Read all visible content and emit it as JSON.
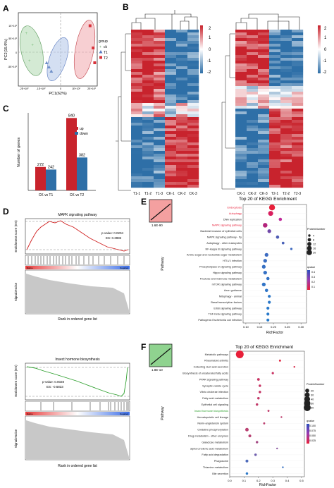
{
  "panels": {
    "A": "A",
    "B": "B",
    "C": "C",
    "D": "D",
    "E": "E",
    "F": "F"
  },
  "panel_a": {
    "xlabel": "PC1(62%)",
    "ylabel": "PC2(15.9%)",
    "legend_title": "group",
    "legend": [
      "ck",
      "T1",
      "T2"
    ],
    "yticks": [
      "1E+10²",
      "5E+10²",
      "0",
      "-5E+10²"
    ],
    "xticks": [
      "-2E+10²",
      "-1E+10²",
      "0",
      "1E+10²",
      "2E+10²"
    ]
  },
  "panel_b": {
    "labels_left": [
      "T1-1",
      "T1-2",
      "T1-3",
      "CK-1",
      "CK-2",
      "CK-3"
    ],
    "labels_right": [
      "CK-1",
      "CK-2",
      "CK-3",
      "T2-1",
      "T2-2",
      "T2-3"
    ],
    "scale": [
      "2",
      "1",
      "0",
      "-1",
      "-2"
    ]
  },
  "panel_c": {
    "ylabel": "Number of genes",
    "legend": [
      "up",
      "down"
    ],
    "colors": {
      "up": "#c8232c",
      "down": "#2e6fa7"
    }
  },
  "panel_d1": {
    "title": "MAPK signaling pathway",
    "pvalue": "p-value: 0.0204",
    "es": "ES: 0.3982",
    "ylabel_top": "Enrichment score (ES)",
    "ylabel_bottom": "Signal2Noise",
    "xlabel": "Rank in ordered gene list",
    "tag_left": "Native",
    "tag_right": "Negative"
  },
  "panel_d2": {
    "title": "Insect hormone biosynthesis",
    "pvalue": "p-value: 0.0028",
    "es": "ES: -0.6833",
    "ylabel_top": "Enrichment score (ES)",
    "ylabel_bottom": "Signal2Noise",
    "xlabel": "Rank in ordered gene list",
    "tag_left": "Native",
    "tag_right": "Negative"
  },
  "panel_e": {
    "title": "Top 20 of KEGG Enrichment",
    "xlabel": "RichFactor",
    "ylabel": "Pathway",
    "inset_label": "1.6E-90",
    "size_legend_title": "ProteinNumber",
    "color_legend_title": "qvalue"
  },
  "panel_f": {
    "title": "Top 20 of KEGG Enrichment",
    "xlabel": "RichFactor",
    "ylabel": "Pathway",
    "inset_label": "1.8E-10",
    "size_legend_title": "ProteinNumber",
    "color_legend_title": "qvalue"
  },
  "chart_data": [
    {
      "type": "scatter",
      "id": "pca",
      "xlabel": "PC1(62%)",
      "ylabel": "PC2(15.9%)",
      "series": [
        {
          "name": "ck",
          "color": "#7fbf7f",
          "x": [
            -2.2,
            -1.8,
            -2.0
          ],
          "y": [
            0.9,
            0.35,
            -0.4
          ]
        },
        {
          "name": "T1",
          "color": "#6f8fc8",
          "x": [
            -0.9,
            -0.6,
            -0.75
          ],
          "y": [
            -0.5,
            -0.9,
            -0.7
          ]
        },
        {
          "name": "T2",
          "color": "#d8323a",
          "x": [
            1.9,
            2.1,
            2.2
          ],
          "y": [
            1.25,
            0.2,
            -0.5
          ]
        }
      ]
    },
    {
      "type": "bar",
      "id": "deg_counts",
      "ylabel": "Number of genes",
      "categories": [
        "CK vs T1",
        "CK vs T2"
      ],
      "series": [
        {
          "name": "up",
          "values": [
            272,
            840
          ]
        },
        {
          "name": "down",
          "values": [
            242,
            382
          ]
        }
      ]
    },
    {
      "type": "scatter",
      "id": "kegg_e",
      "title": "Top 20 of KEGG Enrichment",
      "xlabel": "RichFactor",
      "ylabel": "Pathway",
      "xticks": [
        "0.10",
        "0.15",
        "0.20",
        "0.25",
        "0.30"
      ],
      "xlim": [
        0.09,
        0.32
      ],
      "size_legend": [
        "4",
        "8",
        "12",
        "16",
        "20"
      ],
      "color_legend": [
        "0.4",
        "0.3",
        "0.2",
        "0.1"
      ],
      "pathways": [
        {
          "name": "Endocytosis",
          "rich": 0.195,
          "size": 20,
          "color": "#e8203a",
          "highlight": true
        },
        {
          "name": "Autophagy",
          "rich": 0.19,
          "size": 14,
          "color": "#d81e5e",
          "highlight": true
        },
        {
          "name": "DNA replication",
          "rich": 0.225,
          "size": 6,
          "color": "#c02a9a",
          "highlight": false
        },
        {
          "name": "MAPK signaling pathway",
          "rich": 0.17,
          "size": 12,
          "color": "#b3247c",
          "highlight": true
        },
        {
          "name": "Bacterial invasion of epithelial cells",
          "rich": 0.185,
          "size": 8,
          "color": "#7048a8",
          "highlight": false
        },
        {
          "name": "MAPK signaling pathway - fly",
          "rich": 0.215,
          "size": 6,
          "color": "#4e5cb4",
          "highlight": false
        },
        {
          "name": "Autophagy - other eukaryotes",
          "rich": 0.235,
          "size": 4,
          "color": "#4a62b8",
          "highlight": false
        },
        {
          "name": "NF-kappa B signaling pathway",
          "rich": 0.265,
          "size": 3,
          "color": "#3f6ac0",
          "highlight": false
        },
        {
          "name": "Amino sugar and nucleotide sugar metabolism",
          "rich": 0.175,
          "size": 8,
          "color": "#3d6cc1",
          "highlight": false
        },
        {
          "name": "HTLV-I infection",
          "rich": 0.17,
          "size": 8,
          "color": "#3a6ec2",
          "highlight": false
        },
        {
          "name": "Phospholipase D signaling pathway",
          "rich": 0.165,
          "size": 8,
          "color": "#3770c3",
          "highlight": false
        },
        {
          "name": "Hippo signaling pathway",
          "rich": 0.17,
          "size": 8,
          "color": "#3571c4",
          "highlight": false
        },
        {
          "name": "Fructose and mannose metabolism",
          "rich": 0.18,
          "size": 6,
          "color": "#3372c5",
          "highlight": false
        },
        {
          "name": "mTOR signaling pathway",
          "rich": 0.165,
          "size": 8,
          "color": "#3174c6",
          "highlight": false
        },
        {
          "name": "Axon guidance",
          "rich": 0.175,
          "size": 6,
          "color": "#2f75c7",
          "highlight": false
        },
        {
          "name": "Mitophagy - animal",
          "rich": 0.185,
          "size": 5,
          "color": "#2d77c8",
          "highlight": false
        },
        {
          "name": "Basal transcription factors",
          "rich": 0.185,
          "size": 5,
          "color": "#2b78c9",
          "highlight": false
        },
        {
          "name": "ErbB signaling pathway",
          "rich": 0.18,
          "size": 5,
          "color": "#2a79ca",
          "highlight": false
        },
        {
          "name": "TGF-beta signaling pathway",
          "rich": 0.18,
          "size": 5,
          "color": "#297aca",
          "highlight": false
        },
        {
          "name": "Pathogenic Escherichia coli infection",
          "rich": 0.18,
          "size": 5,
          "color": "#287bcb",
          "highlight": false
        }
      ]
    },
    {
      "type": "scatter",
      "id": "kegg_f",
      "title": "Top 20 of KEGG Enrichment",
      "xlabel": "RichFactor",
      "ylabel": "Pathway",
      "xticks": [
        "0.0",
        "0.1",
        "0.2",
        "0.3",
        "0.4",
        "0.5"
      ],
      "xlim": [
        0.0,
        0.52
      ],
      "size_legend": [
        "20",
        "30",
        "40",
        "50",
        "60"
      ],
      "color_legend": [
        "0.100",
        "0.075",
        "0.050",
        "0.025"
      ],
      "pathways": [
        {
          "name": "Metabolic pathways",
          "rich": 0.07,
          "size": 60,
          "color": "#e8203a",
          "highlight": false
        },
        {
          "name": "Rheumatoid arthritis",
          "rich": 0.35,
          "size": 4,
          "color": "#e0243e",
          "highlight": false
        },
        {
          "name": "Collecting duct acid secretion",
          "rich": 0.45,
          "size": 3,
          "color": "#d82848",
          "highlight": false
        },
        {
          "name": "Biosynthesis of unsaturated fatty acids",
          "rich": 0.3,
          "size": 5,
          "color": "#c93060",
          "highlight": false
        },
        {
          "name": "PPAR signaling pathway",
          "rich": 0.2,
          "size": 7,
          "color": "#c83262",
          "highlight": false
        },
        {
          "name": "Synaptic vesicle cycle",
          "rich": 0.21,
          "size": 6,
          "color": "#c73464",
          "highlight": false
        },
        {
          "name": "Vibrio cholerae infection",
          "rich": 0.21,
          "size": 6,
          "color": "#c53666",
          "highlight": false
        },
        {
          "name": "Fatty acid metabolism",
          "rich": 0.2,
          "size": 6,
          "color": "#c33868",
          "highlight": false
        },
        {
          "name": "Epithelial cell signaling",
          "rich": 0.19,
          "size": 6,
          "color": "#c23a6a",
          "highlight": false
        },
        {
          "name": "Insect hormone biosynthesis",
          "rich": 0.27,
          "size": 4,
          "color": "#c03c6c",
          "highlight": true
        },
        {
          "name": "Hematopoietic cell lineage",
          "rich": 0.36,
          "size": 3,
          "color": "#be3e6e",
          "highlight": false
        },
        {
          "name": "Renin-angiotensin system",
          "rich": 0.24,
          "size": 4,
          "color": "#bc4070",
          "highlight": false
        },
        {
          "name": "Oxidative phosphorylation",
          "rich": 0.12,
          "size": 12,
          "color": "#ba4272",
          "highlight": false
        },
        {
          "name": "Drug metabolism - other enzymes",
          "rich": 0.14,
          "size": 8,
          "color": "#b84474",
          "highlight": false
        },
        {
          "name": "Galactose metabolism",
          "rich": 0.19,
          "size": 6,
          "color": "#a64c86",
          "highlight": false
        },
        {
          "name": "alpha-Linolenic acid metabolism",
          "rich": 0.33,
          "size": 3,
          "color": "#8c58a0",
          "highlight": false
        },
        {
          "name": "Fatty acid degradation",
          "rich": 0.18,
          "size": 6,
          "color": "#7060ae",
          "highlight": false
        },
        {
          "name": "Phagosome",
          "rich": 0.12,
          "size": 8,
          "color": "#4f6cbc",
          "highlight": false
        },
        {
          "name": "Thiamine metabolism",
          "rich": 0.37,
          "size": 3,
          "color": "#3b74c4",
          "highlight": false
        },
        {
          "name": "Bile secretion",
          "rich": 0.12,
          "size": 6,
          "color": "#2d7ac9",
          "highlight": false
        }
      ]
    }
  ]
}
